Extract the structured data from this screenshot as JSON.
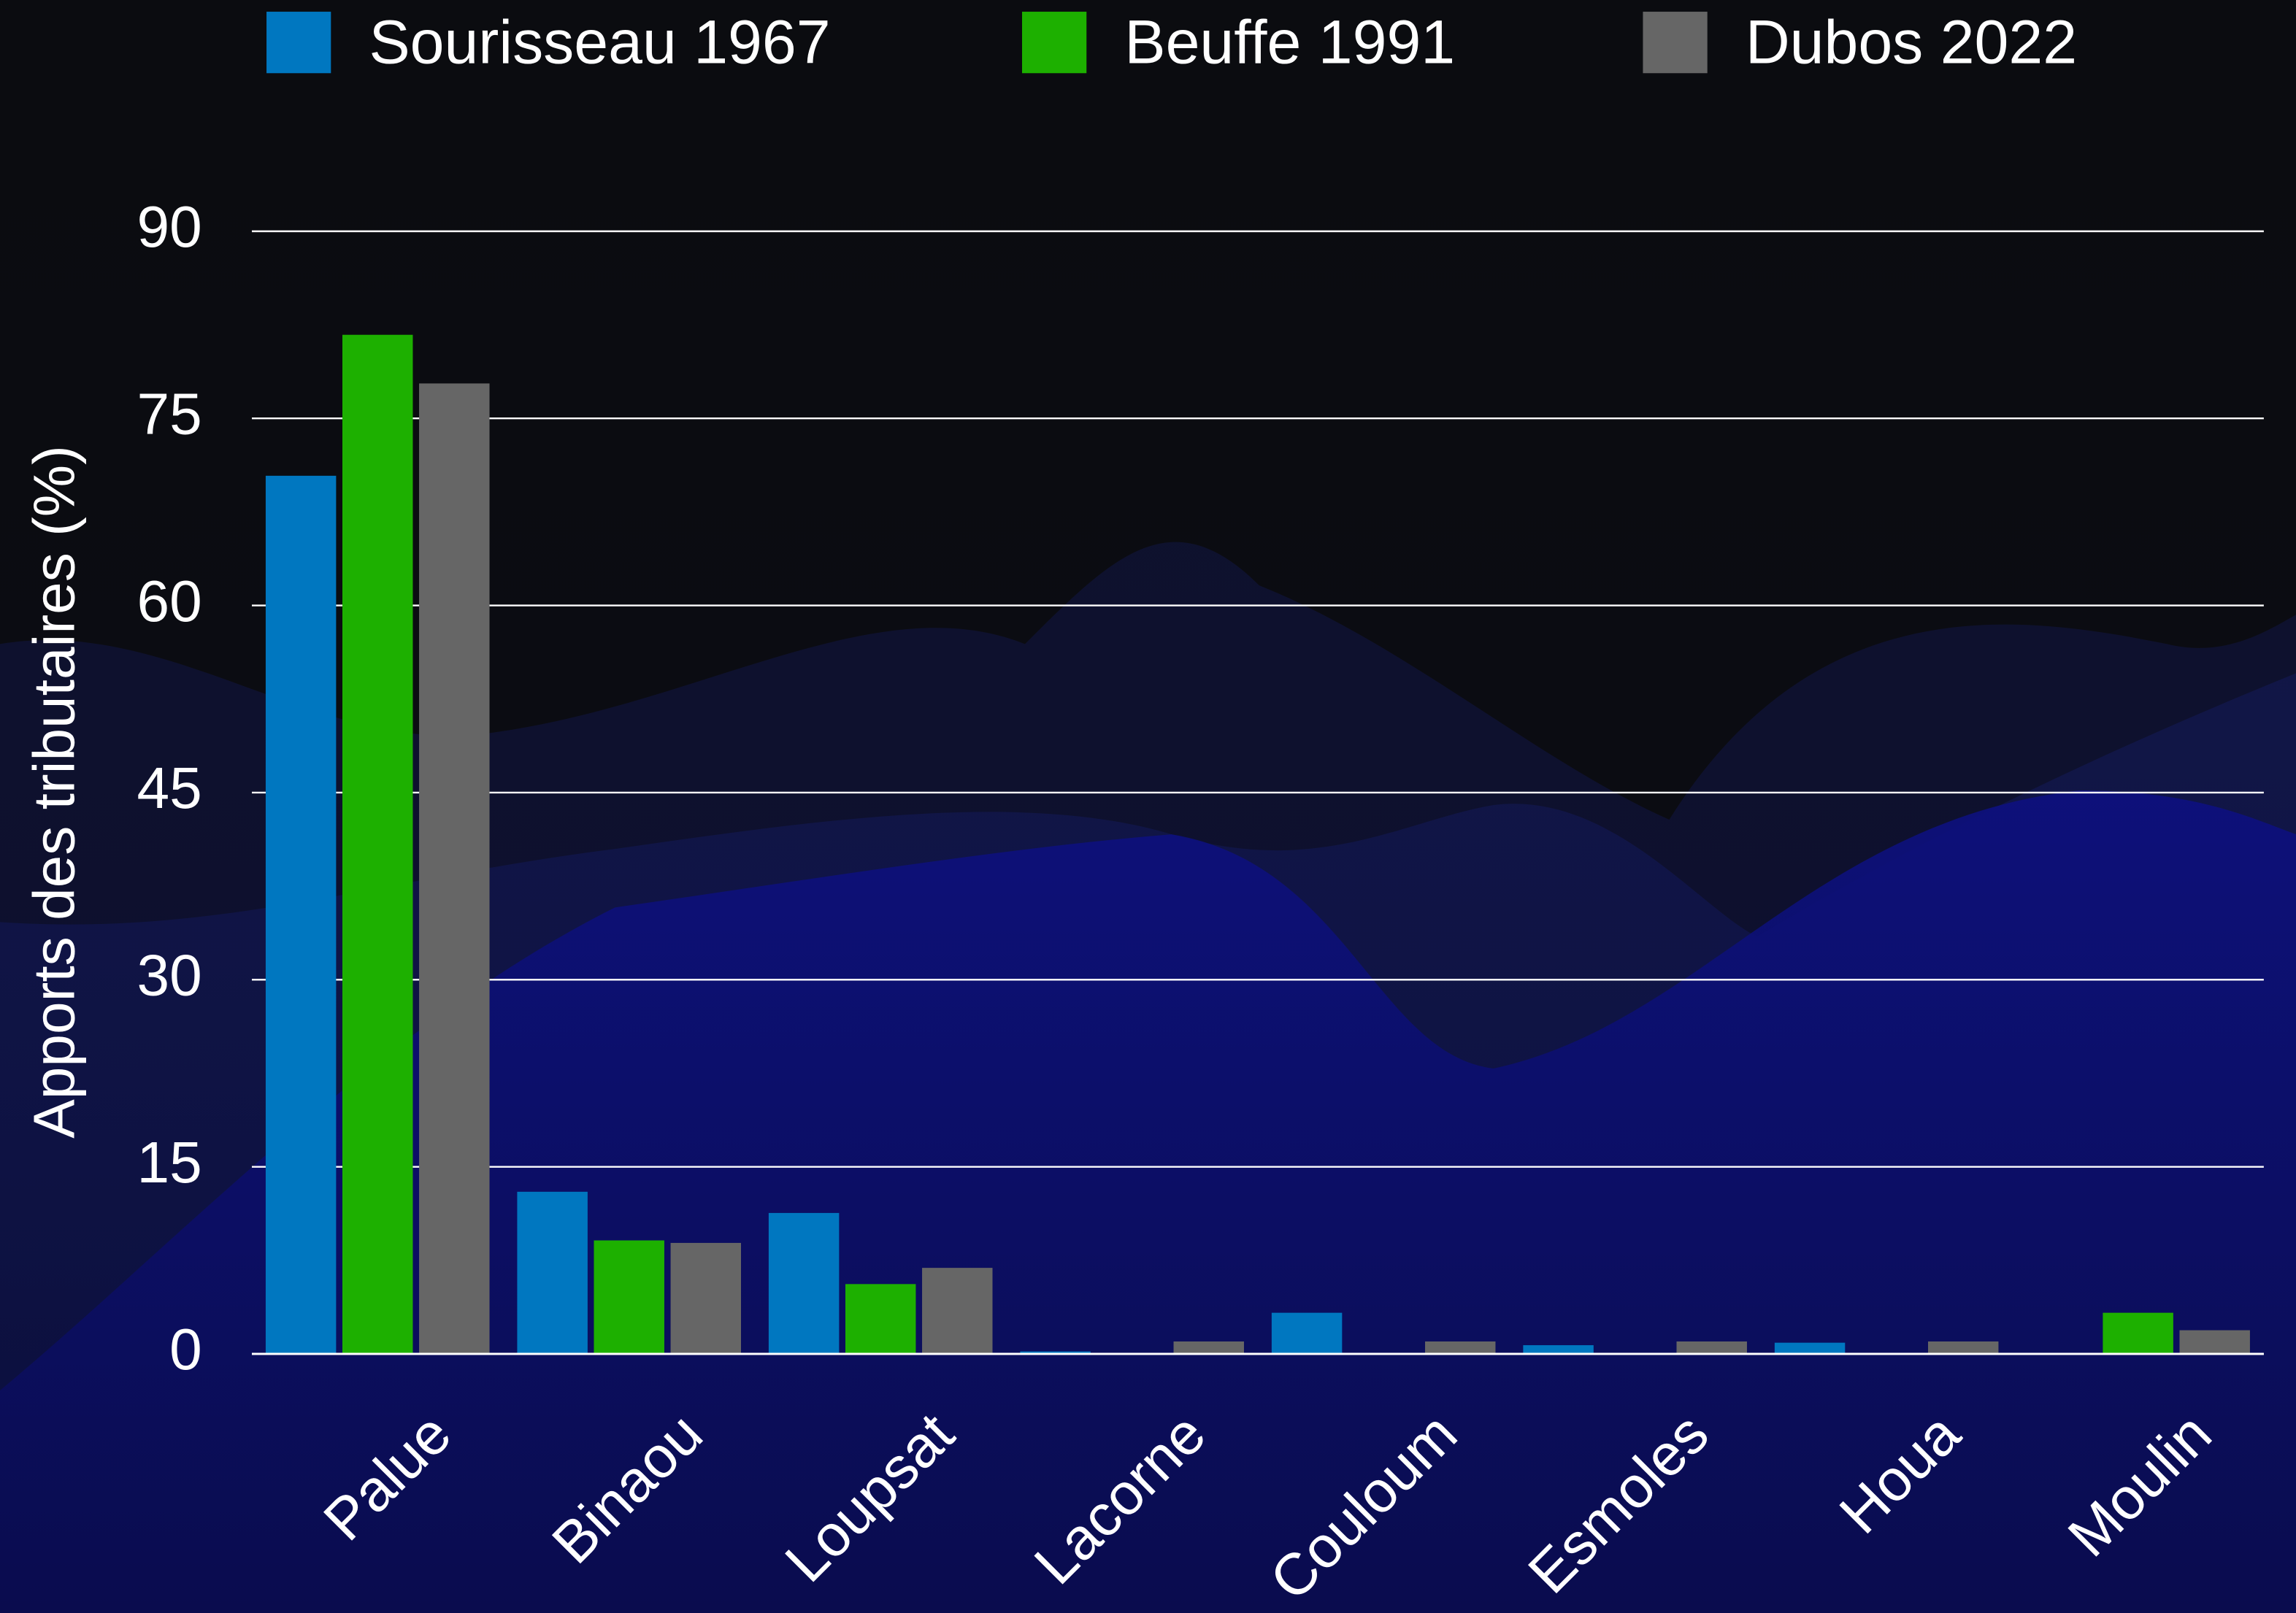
{
  "chart_data": {
    "type": "bar",
    "y_label": "Apports des tributaires (%)",
    "categories": [
      "Palue",
      "Binaou",
      "Loupsat",
      "Lacorne",
      "Couloum",
      "Esmoles",
      "Houa",
      "Moulin"
    ],
    "series": [
      {
        "name": "Sourisseau 1967",
        "color": "#0077c0",
        "values": [
          70.4,
          13.0,
          11.3,
          0.2,
          3.3,
          0.7,
          0.9,
          0
        ]
      },
      {
        "name": "Beuffe 1991",
        "color": "#1db000",
        "values": [
          81.7,
          9.1,
          5.6,
          0,
          0,
          0,
          0,
          3.3
        ]
      },
      {
        "name": "Dubos 2022",
        "color": "#666666",
        "values": [
          77.8,
          8.9,
          6.9,
          1.0,
          1.0,
          1.0,
          1.0,
          1.9
        ]
      }
    ],
    "ylim": [
      0,
      90
    ],
    "yticks": [
      0,
      15,
      30,
      45,
      60,
      75,
      90
    ],
    "grid": true,
    "legend": "top"
  }
}
